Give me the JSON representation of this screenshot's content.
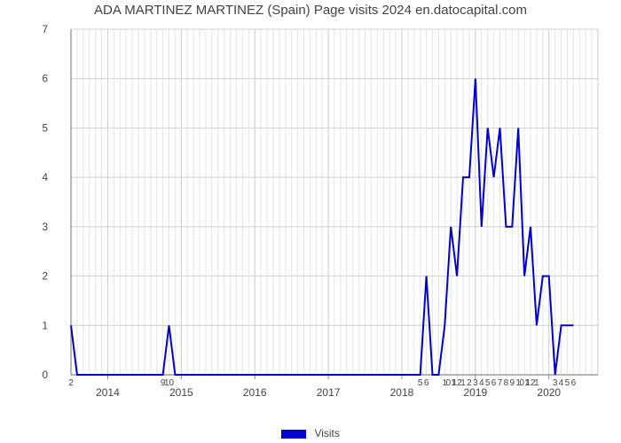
{
  "chart": {
    "type": "line",
    "title": "ADA MARTINEZ MARTINEZ (Spain) Page visits 2024 en.datocapital.com",
    "title_fontsize": 15,
    "title_color": "#444444",
    "background_color": "#ffffff",
    "plot_background": "#ffffff",
    "line_color": "#0000d0",
    "line_width": 2,
    "grid_major_color": "#cfcfcf",
    "grid_minor_color": "#e6e6e6",
    "axis_color": "#888888",
    "tick_font_size": 12,
    "tick_font_color": "#444444",
    "ylim": [
      0,
      7
    ],
    "yticks": [
      0,
      1,
      2,
      3,
      4,
      5,
      6,
      7
    ],
    "x_major_ticks": [
      {
        "x": 6,
        "label": "2014"
      },
      {
        "x": 18,
        "label": "2015"
      },
      {
        "x": 30,
        "label": "2016"
      },
      {
        "x": 42,
        "label": "2017"
      },
      {
        "x": 54,
        "label": "2018"
      },
      {
        "x": 66,
        "label": "2019"
      },
      {
        "x": 78,
        "label": "2020"
      }
    ],
    "x_n_minor_per_major": 12,
    "x_range": [
      0,
      86
    ],
    "x_tick_labels": [
      {
        "x": 0,
        "label": "2"
      },
      {
        "x": 15,
        "label": "9"
      },
      {
        "x": 16,
        "label": "10"
      },
      {
        "x": 57,
        "label": "5"
      },
      {
        "x": 58,
        "label": "6"
      },
      {
        "x": 61,
        "label": "1"
      },
      {
        "x": 62,
        "label": "01"
      },
      {
        "x": 63,
        "label": "12"
      },
      {
        "x": 64,
        "label": "1"
      },
      {
        "x": 65,
        "label": "2"
      },
      {
        "x": 66,
        "label": "3"
      },
      {
        "x": 67,
        "label": "4"
      },
      {
        "x": 68,
        "label": "5"
      },
      {
        "x": 69,
        "label": "6"
      },
      {
        "x": 70,
        "label": "7"
      },
      {
        "x": 71,
        "label": "8"
      },
      {
        "x": 72,
        "label": "9"
      },
      {
        "x": 73,
        "label": "1"
      },
      {
        "x": 74,
        "label": "01"
      },
      {
        "x": 75,
        "label": "12"
      },
      {
        "x": 76,
        "label": "1"
      },
      {
        "x": 79,
        "label": "3"
      },
      {
        "x": 80,
        "label": "4"
      },
      {
        "x": 81,
        "label": "5"
      },
      {
        "x": 82,
        "label": "6"
      }
    ],
    "series": {
      "label": "Visits",
      "xy": [
        [
          0,
          1
        ],
        [
          1,
          0
        ],
        [
          2,
          0
        ],
        [
          3,
          0
        ],
        [
          4,
          0
        ],
        [
          5,
          0
        ],
        [
          6,
          0
        ],
        [
          7,
          0
        ],
        [
          8,
          0
        ],
        [
          9,
          0
        ],
        [
          10,
          0
        ],
        [
          11,
          0
        ],
        [
          12,
          0
        ],
        [
          13,
          0
        ],
        [
          14,
          0
        ],
        [
          15,
          0
        ],
        [
          16,
          1
        ],
        [
          17,
          0
        ],
        [
          18,
          0
        ],
        [
          19,
          0
        ],
        [
          20,
          0
        ],
        [
          21,
          0
        ],
        [
          22,
          0
        ],
        [
          23,
          0
        ],
        [
          24,
          0
        ],
        [
          25,
          0
        ],
        [
          26,
          0
        ],
        [
          27,
          0
        ],
        [
          28,
          0
        ],
        [
          29,
          0
        ],
        [
          30,
          0
        ],
        [
          31,
          0
        ],
        [
          32,
          0
        ],
        [
          33,
          0
        ],
        [
          34,
          0
        ],
        [
          35,
          0
        ],
        [
          36,
          0
        ],
        [
          37,
          0
        ],
        [
          38,
          0
        ],
        [
          39,
          0
        ],
        [
          40,
          0
        ],
        [
          41,
          0
        ],
        [
          42,
          0
        ],
        [
          43,
          0
        ],
        [
          44,
          0
        ],
        [
          45,
          0
        ],
        [
          46,
          0
        ],
        [
          47,
          0
        ],
        [
          48,
          0
        ],
        [
          49,
          0
        ],
        [
          50,
          0
        ],
        [
          51,
          0
        ],
        [
          52,
          0
        ],
        [
          53,
          0
        ],
        [
          54,
          0
        ],
        [
          55,
          0
        ],
        [
          56,
          0
        ],
        [
          57,
          0
        ],
        [
          58,
          2
        ],
        [
          59,
          0
        ],
        [
          60,
          0
        ],
        [
          61,
          1
        ],
        [
          62,
          3
        ],
        [
          63,
          2
        ],
        [
          64,
          4
        ],
        [
          65,
          4
        ],
        [
          66,
          6
        ],
        [
          67,
          3
        ],
        [
          68,
          5
        ],
        [
          69,
          4
        ],
        [
          70,
          5
        ],
        [
          71,
          3
        ],
        [
          72,
          3
        ],
        [
          73,
          5
        ],
        [
          74,
          2
        ],
        [
          75,
          3
        ],
        [
          76,
          1
        ],
        [
          77,
          2
        ],
        [
          78,
          2
        ],
        [
          79,
          0
        ],
        [
          80,
          1
        ],
        [
          81,
          1
        ],
        [
          82,
          1
        ]
      ]
    },
    "legend": {
      "label": "Visits",
      "swatch_color": "#0000d0",
      "font_size": 12,
      "font_color": "#444444"
    }
  }
}
